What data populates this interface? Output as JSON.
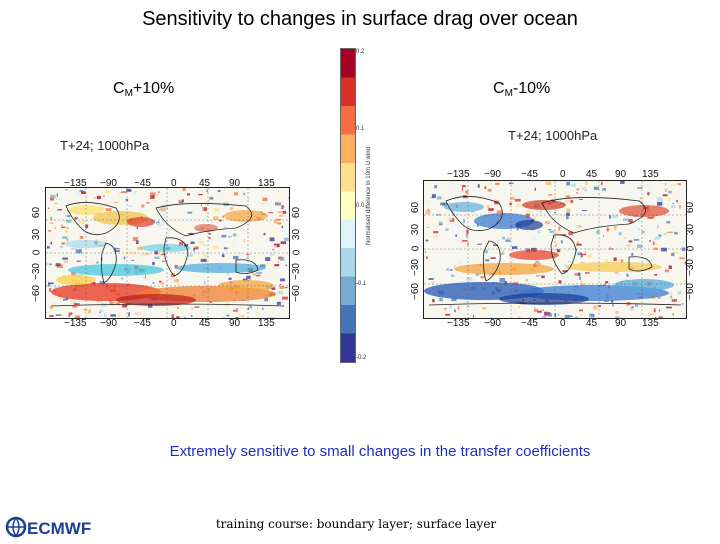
{
  "title": "Sensitivity to changes in surface drag over ocean",
  "left_panel": {
    "label_main": "C",
    "label_sub": "M",
    "label_suffix": "+10%",
    "map_title": "T+24; 1000hPa",
    "x_ticks": [
      "−135",
      "−90",
      "−45",
      "0",
      "45",
      "90",
      "135"
    ],
    "y_ticks": [
      "60",
      "30",
      "0",
      "−30",
      "−60"
    ]
  },
  "right_panel": {
    "label_main": "C",
    "label_sub": "M",
    "label_suffix": "-10%",
    "map_title": "T+24; 1000hPa",
    "x_ticks": [
      "−135",
      "−90",
      "−45",
      "0",
      "45",
      "90",
      "135"
    ],
    "y_ticks": [
      "60",
      "30",
      "0",
      "−30",
      "−60"
    ]
  },
  "colorbar": {
    "ticks": [
      "0.2",
      "0.1",
      "0.0",
      "-0.1",
      "-0.2"
    ],
    "label": "Normalised difference in 10m U wind",
    "colors": [
      "#a50026",
      "#d73027",
      "#f46d43",
      "#fdae61",
      "#fee090",
      "#ffffbf",
      "#e0f3f8",
      "#abd9e9",
      "#74add1",
      "#4575b4",
      "#313695"
    ]
  },
  "caption": "Extremely sensitive to small changes in the transfer coefficients",
  "footer": "training course: boundary layer; surface layer",
  "logo": {
    "text": "ECMWF",
    "color": "#1c3f94"
  }
}
